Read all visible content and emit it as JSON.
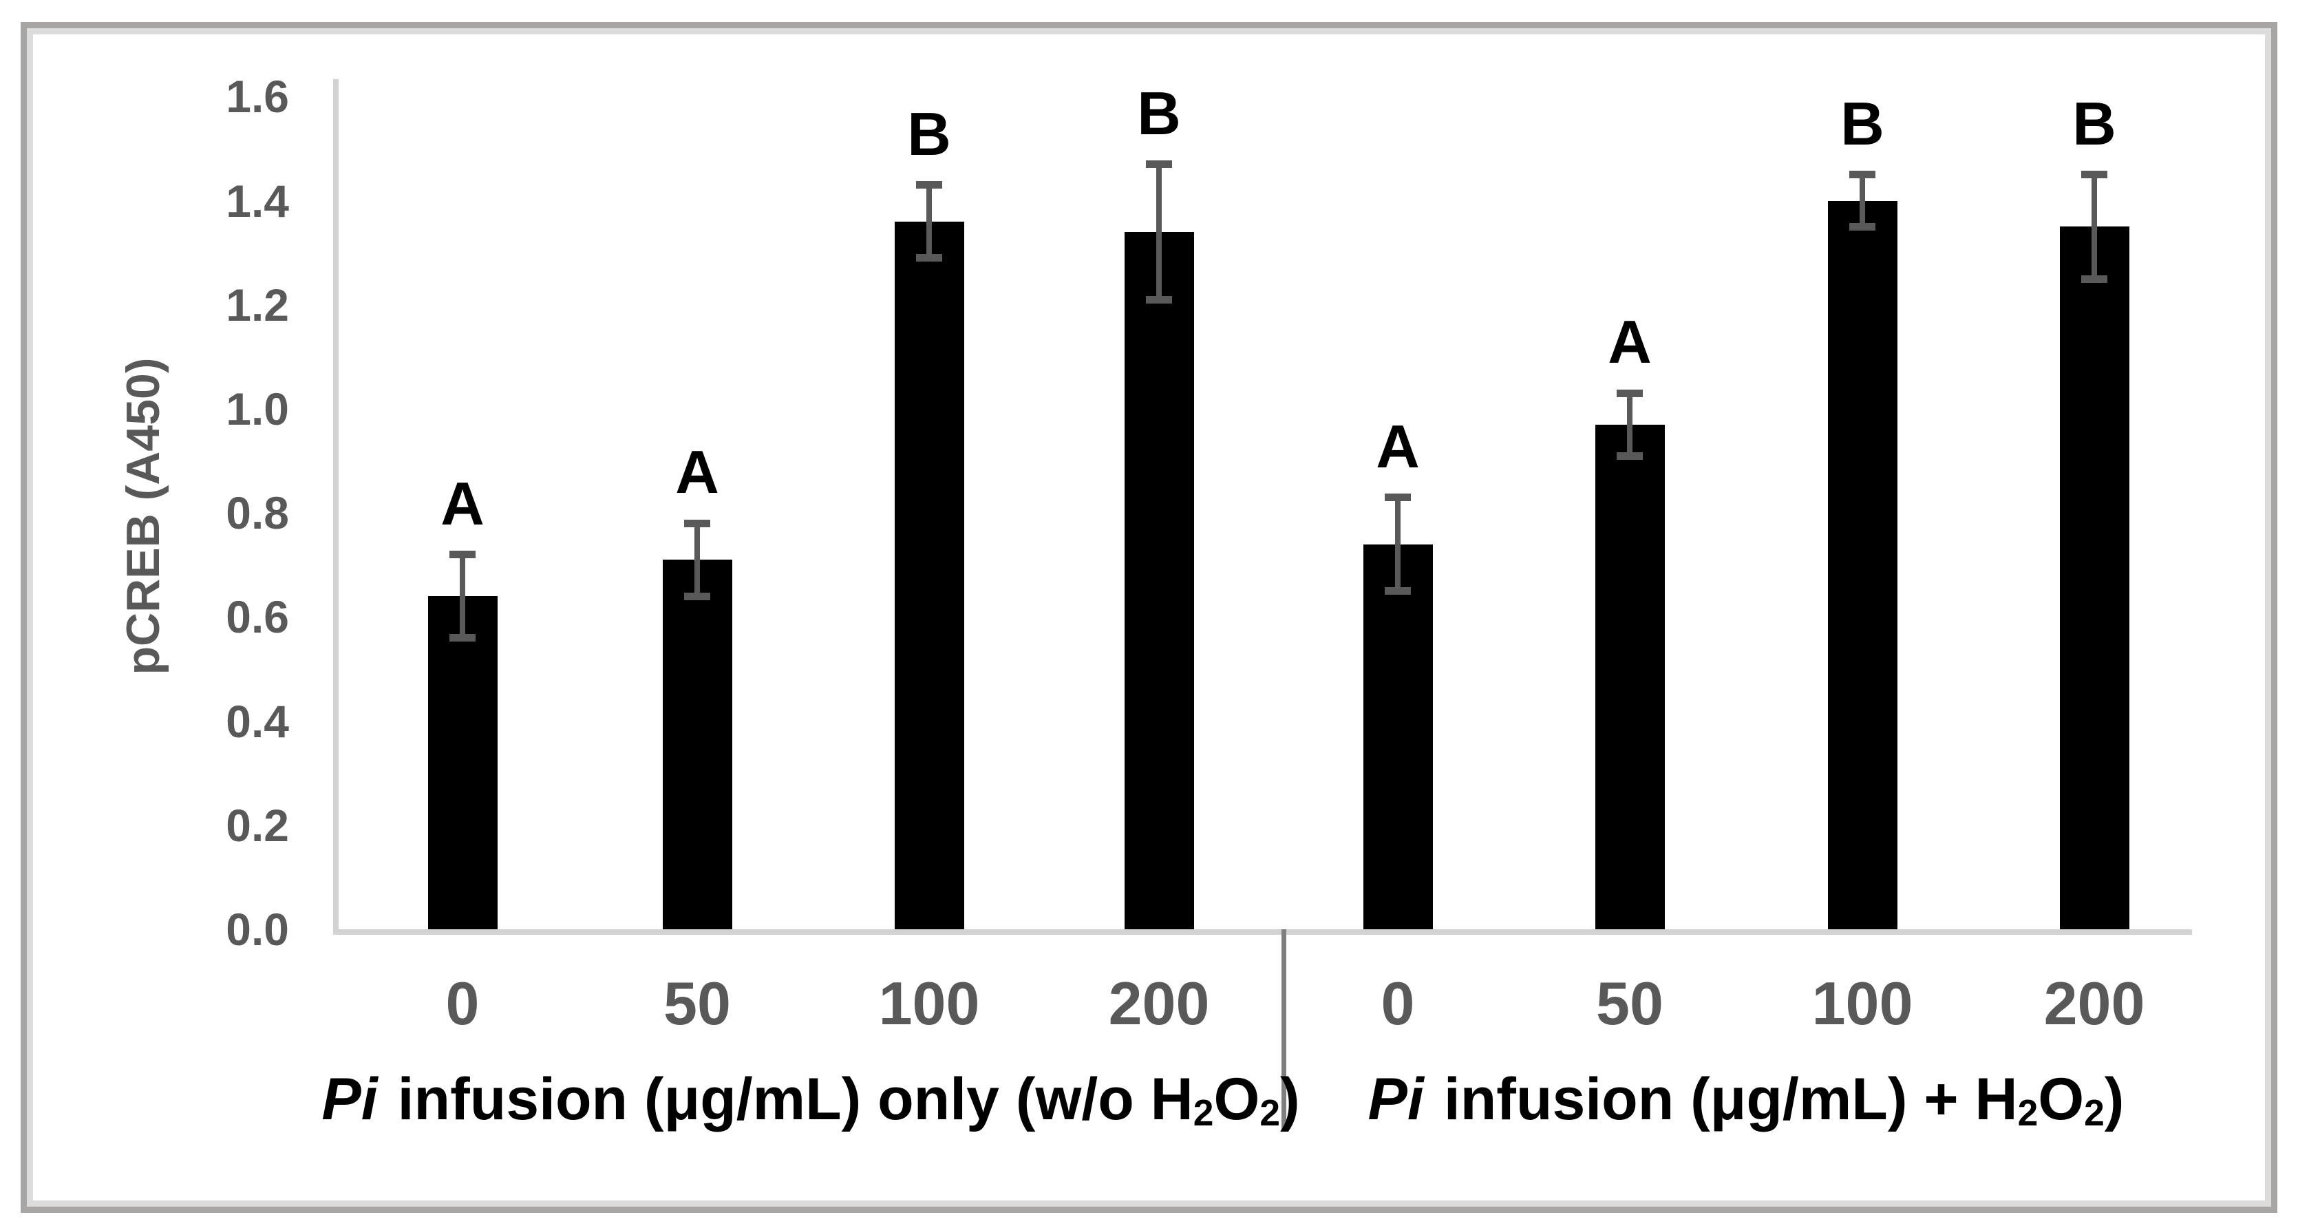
{
  "figure_title": "",
  "chart_data": {
    "type": "bar",
    "title": "",
    "xlabel": "",
    "ylabel": "pCREB (A450)",
    "ylim": [
      0.0,
      1.6
    ],
    "ytick_step": 0.2,
    "yticks": [
      "0.0",
      "0.2",
      "0.4",
      "0.6",
      "0.8",
      "1.0",
      "1.2",
      "1.4",
      "1.6"
    ],
    "grid": false,
    "legend": null,
    "bar_color": "#000000",
    "error_bar_color": "#595959",
    "axis_line_color": "#d2d2d2",
    "tick_label_color": "#595959",
    "sig_letter_color": "#000000",
    "group_divider_color": "#7f7f7f",
    "frame_outer_color": "#a8a5a5",
    "frame_inner_color": "#dcdcdc",
    "groups": [
      {
        "label_text": "Pi infusion (μg/mL) only (w/o H2O2)",
        "label_segments": [
          {
            "t": "Pi",
            "italic": true
          },
          {
            "t": " infusion (μg/mL) only (w/o H"
          },
          {
            "t": "2",
            "sub": true
          },
          {
            "t": "O"
          },
          {
            "t": "2",
            "sub": true
          },
          {
            "t": ")"
          }
        ],
        "categories": [
          "0",
          "50",
          "100",
          "200"
        ],
        "values": [
          0.64,
          0.71,
          1.36,
          1.34
        ],
        "errors": [
          0.08,
          0.07,
          0.07,
          0.13
        ],
        "sig_letters": [
          "A",
          "A",
          "B",
          "B"
        ]
      },
      {
        "label_text": "Pi infusion (μg/mL) + H2O2)",
        "label_segments": [
          {
            "t": "Pi",
            "italic": true
          },
          {
            "t": " infusion (μg/mL) + H"
          },
          {
            "t": "2",
            "sub": true
          },
          {
            "t": "O"
          },
          {
            "t": "2",
            "sub": true
          },
          {
            "t": ")"
          }
        ],
        "categories": [
          "0",
          "50",
          "100",
          "200"
        ],
        "values": [
          0.74,
          0.97,
          1.4,
          1.35
        ],
        "errors": [
          0.09,
          0.06,
          0.05,
          0.1
        ],
        "sig_letters": [
          "A",
          "A",
          "B",
          "B"
        ]
      }
    ]
  }
}
